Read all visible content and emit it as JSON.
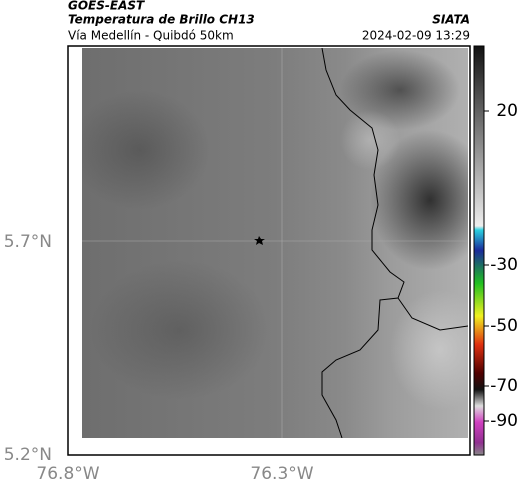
{
  "header": {
    "product": "GOES-EAST",
    "title": "Temperatura de Brillo CH13",
    "source": "SIATA",
    "route": "Vía Medellín - Quibdó 50km",
    "timestamp": "2024-02-09 13:29"
  },
  "map": {
    "lat_labels": [
      "5.7°N",
      "5.2°N"
    ],
    "lon_labels": [
      "76.8°W",
      "76.3°W"
    ]
  },
  "colorbar": {
    "ticks": [
      20,
      -30,
      -50,
      -70,
      -90
    ]
  }
}
